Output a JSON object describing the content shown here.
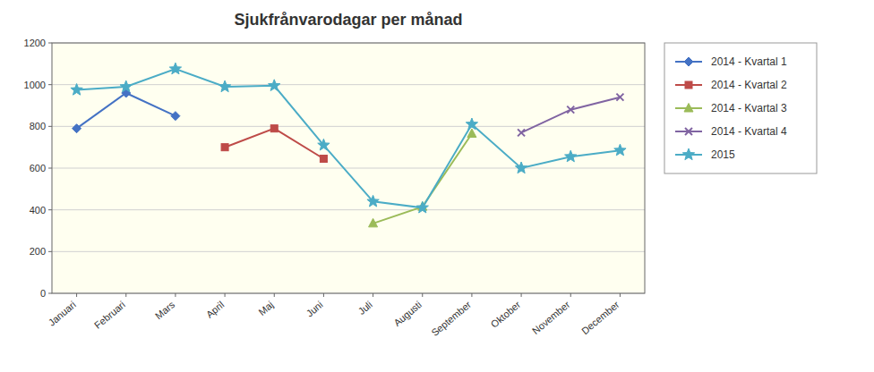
{
  "chart_data": {
    "type": "line",
    "title": "Sjukfrånvarodagar per månad",
    "categories": [
      "Januari",
      "Februari",
      "Mars",
      "April",
      "Maj",
      "Juni",
      "Juli",
      "Augusti",
      "September",
      "Oktober",
      "November",
      "December"
    ],
    "series": [
      {
        "name": "2014 - Kvartal 1",
        "color": "#4472C4",
        "marker": "diamond",
        "values": [
          790,
          960,
          850,
          null,
          null,
          null,
          null,
          null,
          null,
          null,
          null,
          null
        ]
      },
      {
        "name": "2014 - Kvartal 2",
        "color": "#BE4B48",
        "marker": "square",
        "values": [
          null,
          null,
          null,
          700,
          790,
          645,
          null,
          null,
          null,
          null,
          null,
          null
        ]
      },
      {
        "name": "2014 - Kvartal 3",
        "color": "#9BBB59",
        "marker": "triangle",
        "values": [
          null,
          null,
          null,
          null,
          null,
          null,
          335,
          415,
          765,
          null,
          null,
          null
        ]
      },
      {
        "name": "2014 - Kvartal 4",
        "color": "#8064A2",
        "marker": "x",
        "values": [
          null,
          null,
          null,
          null,
          null,
          null,
          null,
          null,
          null,
          770,
          880,
          940
        ]
      },
      {
        "name": "2015",
        "color": "#4BACC6",
        "marker": "star",
        "values": [
          975,
          990,
          1075,
          990,
          995,
          710,
          440,
          410,
          810,
          600,
          655,
          685
        ]
      }
    ],
    "ylim": [
      0,
      1200
    ],
    "yticks": [
      0,
      200,
      400,
      600,
      800,
      1000,
      1200
    ],
    "grid": true,
    "legend": "right"
  }
}
